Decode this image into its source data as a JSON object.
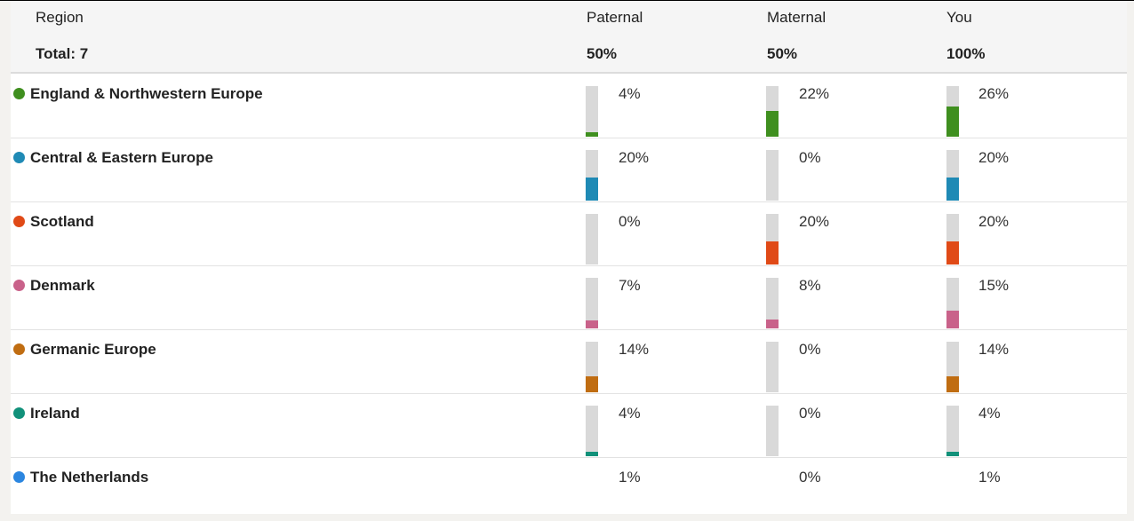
{
  "header": {
    "region_label": "Region",
    "total_label": "Total: 7",
    "columns": [
      {
        "label": "Paternal",
        "total": "50%"
      },
      {
        "label": "Maternal",
        "total": "50%"
      },
      {
        "label": "You",
        "total": "100%"
      }
    ]
  },
  "regions": [
    {
      "name": "England & Northwestern Europe",
      "color": "#3f8f1f",
      "paternal": "4%",
      "maternal": "22%",
      "you": "26%",
      "paternal_value": 4,
      "maternal_value": 22,
      "you_value": 26
    },
    {
      "name": "Central & Eastern Europe",
      "color": "#1f8ab5",
      "paternal": "20%",
      "maternal": "0%",
      "you": "20%",
      "paternal_value": 20,
      "maternal_value": 0,
      "you_value": 20
    },
    {
      "name": "Scotland",
      "color": "#e04a17",
      "paternal": "0%",
      "maternal": "20%",
      "you": "20%",
      "paternal_value": 0,
      "maternal_value": 20,
      "you_value": 20
    },
    {
      "name": "Denmark",
      "color": "#c9628a",
      "paternal": "7%",
      "maternal": "8%",
      "you": "15%",
      "paternal_value": 7,
      "maternal_value": 8,
      "you_value": 15
    },
    {
      "name": "Germanic Europe",
      "color": "#c06d12",
      "paternal": "14%",
      "maternal": "0%",
      "you": "14%",
      "paternal_value": 14,
      "maternal_value": 0,
      "you_value": 14
    },
    {
      "name": "Ireland",
      "color": "#11917a",
      "paternal": "4%",
      "maternal": "0%",
      "you": "4%",
      "paternal_value": 4,
      "maternal_value": 0,
      "you_value": 4
    },
    {
      "name": "The Netherlands",
      "color": "#2b86e0",
      "paternal": "1%",
      "maternal": "0%",
      "you": "1%",
      "paternal_value": 1,
      "maternal_value": 0,
      "you_value": 1
    }
  ]
}
